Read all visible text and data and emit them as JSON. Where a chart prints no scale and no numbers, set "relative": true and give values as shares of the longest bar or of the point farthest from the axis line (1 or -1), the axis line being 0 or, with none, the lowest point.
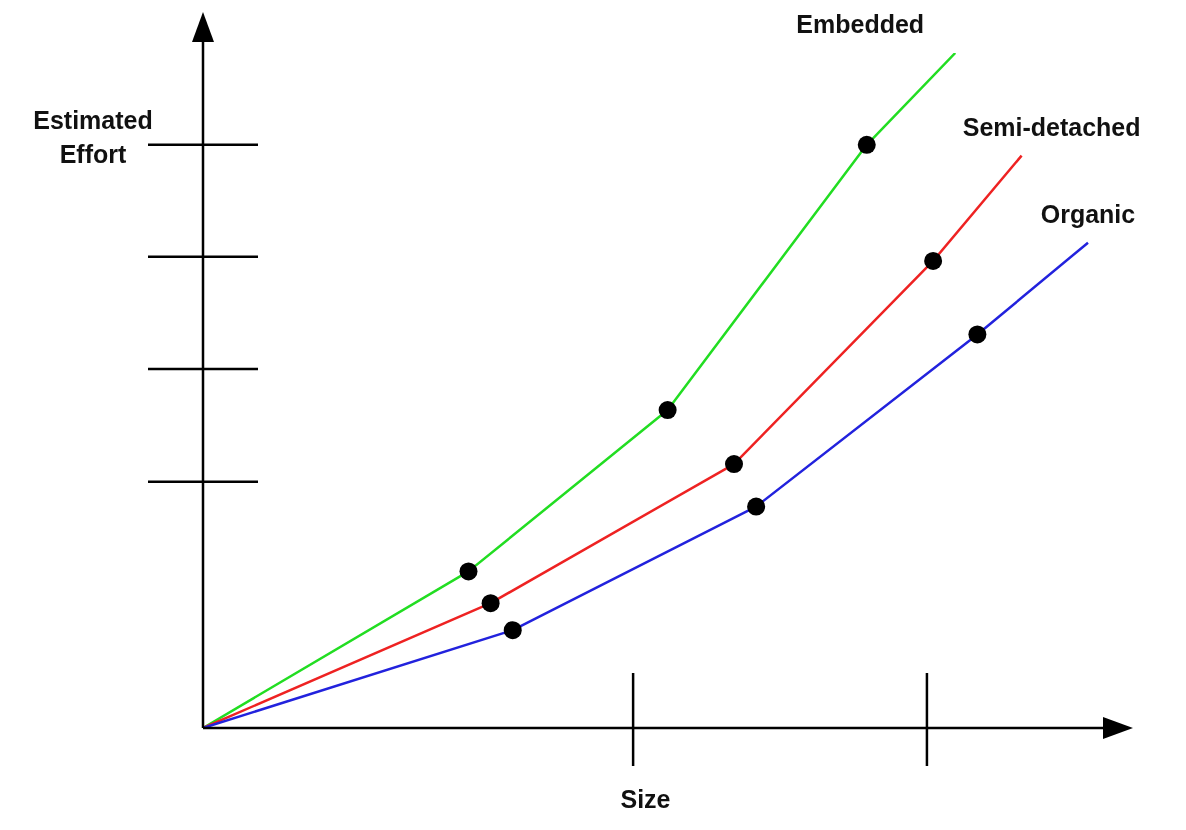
{
  "chart_data": {
    "type": "line",
    "xlabel": "Size",
    "ylabel": "Estimated Effort",
    "relative": true,
    "grid": false,
    "legend": false,
    "marker": "circle",
    "line_style": "solid",
    "categories": [
      null,
      null,
      null,
      null,
      null,
      null,
      null,
      null,
      null,
      null,
      null,
      null,
      null,
      null,
      null,
      null,
      null,
      null,
      null,
      null,
      null,
      null,
      null,
      null,
      null,
      null,
      null,
      null,
      null,
      null,
      null,
      null,
      null,
      null,
      null,
      null,
      null,
      null,
      null,
      null,
      null
    ],
    "series": [
      {
        "name": "Embedded",
        "color": "#22dd22",
        "values": [
          0,
          null,
          null,
          null,
          null,
          null,
          null,
          null,
          null,
          null,
          null,
          null,
          0.232,
          null,
          null,
          null,
          null,
          null,
          null,
          null,
          null,
          0.471,
          null,
          null,
          null,
          null,
          null,
          null,
          null,
          null,
          0.864,
          null,
          null,
          null,
          1,
          null,
          null,
          null,
          null,
          null,
          null
        ]
      },
      {
        "name": "Semi-detached",
        "color": "#ee2222",
        "values": [
          0,
          null,
          null,
          null,
          null,
          null,
          null,
          null,
          null,
          null,
          null,
          null,
          null,
          0.185,
          null,
          null,
          null,
          null,
          null,
          null,
          null,
          null,
          null,
          null,
          0.391,
          null,
          null,
          null,
          null,
          null,
          null,
          null,
          null,
          0.692,
          null,
          null,
          null,
          0.848,
          null,
          null,
          null
        ]
      },
      {
        "name": "Organic",
        "color": "#2222dd",
        "values": [
          0,
          null,
          null,
          null,
          null,
          null,
          null,
          null,
          null,
          null,
          null,
          null,
          null,
          null,
          0.145,
          null,
          null,
          null,
          null,
          null,
          null,
          null,
          null,
          null,
          null,
          0.328,
          null,
          null,
          null,
          null,
          null,
          null,
          null,
          null,
          null,
          0.583,
          null,
          null,
          null,
          null,
          0.719
        ]
      }
    ]
  }
}
